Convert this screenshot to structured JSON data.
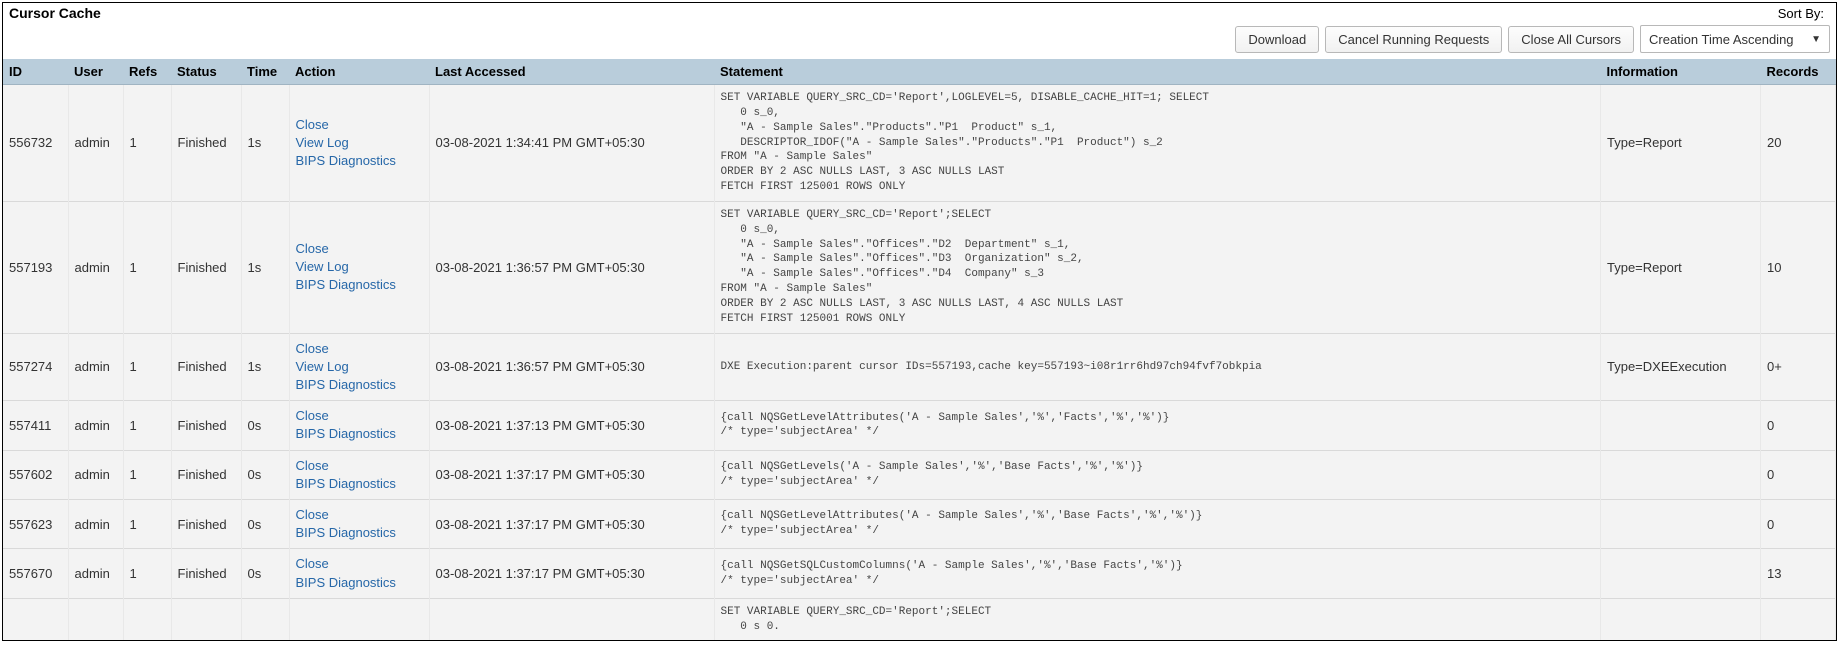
{
  "header": {
    "title": "Cursor Cache",
    "sort_by_label": "Sort By:"
  },
  "toolbar": {
    "download": "Download",
    "cancel_running": "Cancel Running Requests",
    "close_all": "Close All Cursors",
    "sort_selected": "Creation Time Ascending"
  },
  "columns": {
    "id": "ID",
    "user": "User",
    "refs": "Refs",
    "status": "Status",
    "time": "Time",
    "action": "Action",
    "last_accessed": "Last Accessed",
    "statement": "Statement",
    "information": "Information",
    "records": "Records"
  },
  "action_labels": {
    "close": "Close",
    "view_log": "View Log",
    "bips": "BIPS Diagnostics"
  },
  "rows": [
    {
      "id": "556732",
      "user": "admin",
      "refs": "1",
      "status": "Finished",
      "time": "1s",
      "actions": [
        "close",
        "view_log",
        "bips"
      ],
      "last_accessed": "03-08-2021 1:34:41 PM GMT+05:30",
      "statement": "SET VARIABLE QUERY_SRC_CD='Report',LOGLEVEL=5, DISABLE_CACHE_HIT=1; SELECT\n   0 s_0,\n   \"A - Sample Sales\".\"Products\".\"P1  Product\" s_1,\n   DESCRIPTOR_IDOF(\"A - Sample Sales\".\"Products\".\"P1  Product\") s_2\nFROM \"A - Sample Sales\"\nORDER BY 2 ASC NULLS LAST, 3 ASC NULLS LAST\nFETCH FIRST 125001 ROWS ONLY",
      "information": "Type=Report",
      "records": "20"
    },
    {
      "id": "557193",
      "user": "admin",
      "refs": "1",
      "status": "Finished",
      "time": "1s",
      "actions": [
        "close",
        "view_log",
        "bips"
      ],
      "last_accessed": "03-08-2021 1:36:57 PM GMT+05:30",
      "statement": "SET VARIABLE QUERY_SRC_CD='Report';SELECT\n   0 s_0,\n   \"A - Sample Sales\".\"Offices\".\"D2  Department\" s_1,\n   \"A - Sample Sales\".\"Offices\".\"D3  Organization\" s_2,\n   \"A - Sample Sales\".\"Offices\".\"D4  Company\" s_3\nFROM \"A - Sample Sales\"\nORDER BY 2 ASC NULLS LAST, 3 ASC NULLS LAST, 4 ASC NULLS LAST\nFETCH FIRST 125001 ROWS ONLY",
      "information": "Type=Report",
      "records": "10"
    },
    {
      "id": "557274",
      "user": "admin",
      "refs": "1",
      "status": "Finished",
      "time": "1s",
      "actions": [
        "close",
        "view_log",
        "bips"
      ],
      "last_accessed": "03-08-2021 1:36:57 PM GMT+05:30",
      "statement": "DXE Execution:parent cursor IDs=557193,cache key=557193~i08r1rr6hd97ch94fvf7obkpia",
      "information": "Type=DXEExecution",
      "records": "0+"
    },
    {
      "id": "557411",
      "user": "admin",
      "refs": "1",
      "status": "Finished",
      "time": "0s",
      "actions": [
        "close",
        "bips"
      ],
      "last_accessed": "03-08-2021 1:37:13 PM GMT+05:30",
      "statement": "{call NQSGetLevelAttributes('A - Sample Sales','%','Facts','%','%')}\n/* type='subjectArea' */",
      "information": "",
      "records": "0"
    },
    {
      "id": "557602",
      "user": "admin",
      "refs": "1",
      "status": "Finished",
      "time": "0s",
      "actions": [
        "close",
        "bips"
      ],
      "last_accessed": "03-08-2021 1:37:17 PM GMT+05:30",
      "statement": "{call NQSGetLevels('A - Sample Sales','%','Base Facts','%','%')}\n/* type='subjectArea' */",
      "information": "",
      "records": "0"
    },
    {
      "id": "557623",
      "user": "admin",
      "refs": "1",
      "status": "Finished",
      "time": "0s",
      "actions": [
        "close",
        "bips"
      ],
      "last_accessed": "03-08-2021 1:37:17 PM GMT+05:30",
      "statement": "{call NQSGetLevelAttributes('A - Sample Sales','%','Base Facts','%','%')}\n/* type='subjectArea' */",
      "information": "",
      "records": "0"
    },
    {
      "id": "557670",
      "user": "admin",
      "refs": "1",
      "status": "Finished",
      "time": "0s",
      "actions": [
        "close",
        "bips"
      ],
      "last_accessed": "03-08-2021 1:37:17 PM GMT+05:30",
      "statement": "{call NQSGetSQLCustomColumns('A - Sample Sales','%','Base Facts','%')}\n/* type='subjectArea' */",
      "information": "",
      "records": "13"
    },
    {
      "id": "",
      "user": "",
      "refs": "",
      "status": "",
      "time": "",
      "actions": [],
      "last_accessed": "",
      "statement": "SET VARIABLE QUERY_SRC_CD='Report';SELECT\n   0 s 0.",
      "information": "",
      "records": ""
    }
  ]
}
